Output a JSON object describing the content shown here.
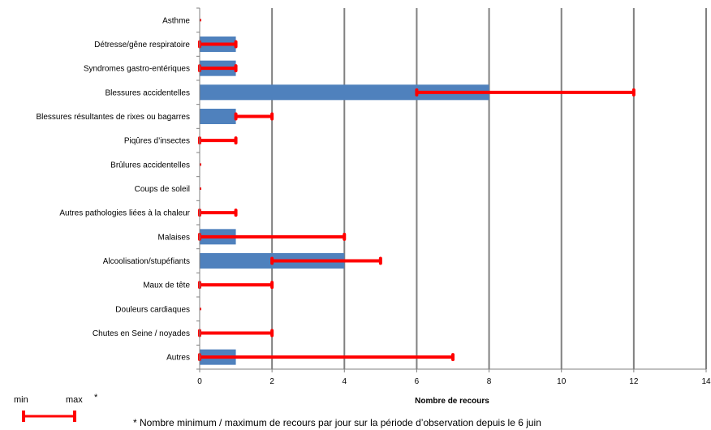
{
  "chart_data": {
    "type": "bar",
    "orientation": "horizontal",
    "categories": [
      "Asthme",
      "Détresse/gêne respiratoire",
      "Syndromes gastro-entériques",
      "Blessures accidentelles",
      "Blessures résultantes de rixes ou  bagarres",
      "Piqûres d’insectes",
      "Brûlures accidentelles",
      "Coups de soleil",
      "Autres pathologies liées à la chaleur",
      "Malaises",
      "Alcoolisation/stupéfiants",
      "Maux de tête",
      "Douleurs cardiaques",
      "Chutes en Seine / noyades",
      "Autres"
    ],
    "values": [
      0,
      1,
      1,
      8,
      1,
      0,
      0,
      0,
      0,
      1,
      4,
      0,
      0,
      0,
      1
    ],
    "min": [
      0,
      0,
      0,
      6,
      1,
      0,
      0,
      0,
      0,
      0,
      2,
      0,
      0,
      0,
      0
    ],
    "max": [
      0,
      1,
      1,
      12,
      2,
      1,
      0,
      0,
      1,
      4,
      5,
      2,
      0,
      2,
      7
    ],
    "xlabel": "Nombre de recours",
    "xlim": [
      0,
      14
    ],
    "xticks": [
      "0",
      "2",
      "4",
      "6",
      "8",
      "10",
      "12",
      "14"
    ],
    "grid": true,
    "bar_color": "#4f81bd",
    "range_color": "#ff0000",
    "gridline_color": "#808080"
  },
  "legend": {
    "min_label": "min",
    "max_label": "max",
    "asterisk": "*"
  },
  "footnote": "* Nombre minimum / maximum de recours par jour sur la période d’observation depuis le 6 juin"
}
